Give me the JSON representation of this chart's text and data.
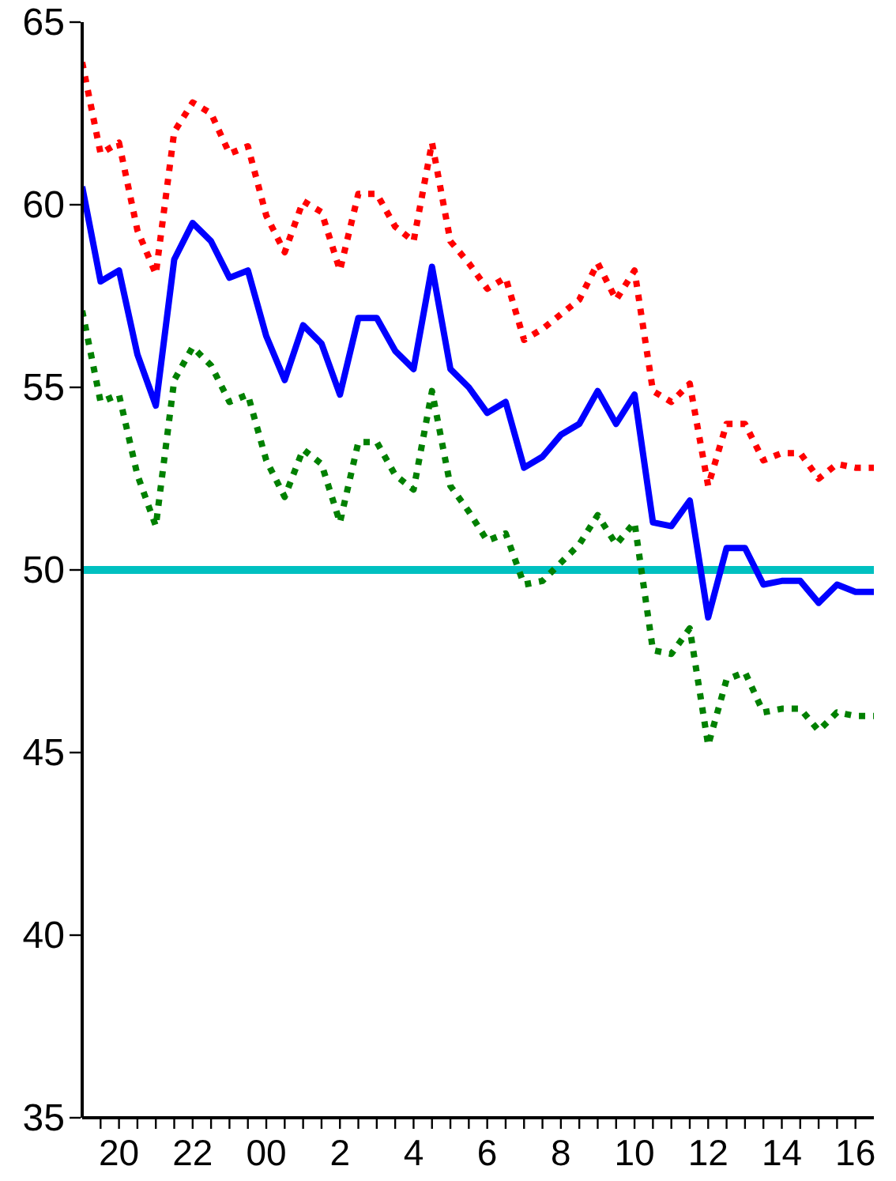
{
  "chart_data": {
    "type": "line",
    "x": [
      "2000-01-01T19:00",
      "2000-01-01T19:30",
      "2000-01-01T20:00",
      "2000-01-01T20:30",
      "2000-01-01T21:00",
      "2000-01-01T21:30",
      "2000-01-01T22:00",
      "2000-01-01T22:30",
      "2000-01-01T23:00",
      "2000-01-01T23:30",
      "2000-01-02T00:00",
      "2000-01-02T00:30",
      "2000-01-02T01:00",
      "2000-01-02T01:30",
      "2000-01-02T02:00",
      "2000-01-02T02:30",
      "2000-01-02T03:00",
      "2000-01-02T03:30",
      "2000-01-02T04:00",
      "2000-01-02T04:30",
      "2000-01-02T05:00",
      "2000-01-02T05:30",
      "2000-01-02T06:00",
      "2000-01-02T06:30",
      "2000-01-02T07:00",
      "2000-01-02T07:30",
      "2000-01-02T08:00",
      "2000-01-02T08:30",
      "2000-01-02T09:00",
      "2000-01-02T09:30",
      "2000-01-02T10:00",
      "2000-01-02T10:30",
      "2000-01-02T11:00",
      "2000-01-02T11:30",
      "2000-01-02T12:00",
      "2000-01-02T12:30",
      "2000-01-02T13:00",
      "2000-01-02T13:30",
      "2000-01-02T14:00",
      "2000-01-02T14:30",
      "2000-01-02T15:00",
      "2000-01-02T15:30",
      "2000-01-02T16:00",
      "2000-01-02T16:30"
    ],
    "series": [
      {
        "color": "#ff0000",
        "line_style": "dotted",
        "values": [
          63.9,
          61.4,
          61.7,
          59.3,
          58.1,
          62.0,
          62.8,
          62.5,
          61.4,
          61.6,
          59.7,
          58.7,
          60.1,
          59.8,
          58.2,
          60.3,
          60.3,
          59.4,
          59.0,
          61.7,
          59.0,
          58.4,
          57.7,
          58.0,
          56.3,
          56.6,
          57.0,
          57.4,
          58.4,
          57.4,
          58.2,
          54.9,
          54.6,
          55.1,
          52.3,
          54.0,
          54.0,
          53.0,
          53.2,
          53.2,
          52.5,
          52.9,
          52.8,
          52.8
        ]
      },
      {
        "color": "#0000ff",
        "line_style": "solid",
        "values": [
          60.5,
          57.9,
          58.2,
          55.9,
          54.5,
          58.5,
          59.5,
          59.0,
          58.0,
          58.2,
          56.4,
          55.2,
          56.7,
          56.2,
          54.8,
          56.9,
          56.9,
          56.0,
          55.5,
          58.3,
          55.5,
          55.0,
          54.3,
          54.6,
          52.8,
          53.1,
          53.7,
          54.0,
          54.9,
          54.0,
          54.8,
          51.3,
          51.2,
          51.9,
          48.7,
          50.6,
          50.6,
          49.6,
          49.7,
          49.7,
          49.1,
          49.6,
          49.4,
          49.4
        ]
      },
      {
        "color": "#008000",
        "line_style": "dotted",
        "values": [
          57.1,
          54.6,
          54.8,
          52.6,
          51.2,
          55.2,
          56.1,
          55.6,
          54.6,
          54.8,
          53.0,
          52.0,
          53.3,
          52.9,
          51.3,
          53.5,
          53.5,
          52.6,
          52.2,
          54.9,
          52.3,
          51.6,
          50.8,
          51.0,
          49.6,
          49.7,
          50.2,
          50.7,
          51.5,
          50.7,
          51.3,
          47.8,
          47.7,
          48.4,
          45.2,
          47.0,
          47.2,
          46.1,
          46.2,
          46.2,
          45.6,
          46.1,
          46.0,
          46.0
        ]
      }
    ],
    "xlim": [
      "2000-01-01T19:00",
      "2000-01-02T16:30"
    ],
    "xticks": [
      {
        "value": "2000-01-01T19:30",
        "label": null
      },
      {
        "value": "2000-01-01T20:00",
        "label": "20"
      },
      {
        "value": "2000-01-01T20:30",
        "label": null
      },
      {
        "value": "2000-01-01T21:00",
        "label": null
      },
      {
        "value": "2000-01-01T21:30",
        "label": null
      },
      {
        "value": "2000-01-01T22:00",
        "label": "22"
      },
      {
        "value": "2000-01-01T22:30",
        "label": null
      },
      {
        "value": "2000-01-01T23:00",
        "label": null
      },
      {
        "value": "2000-01-01T23:30",
        "label": null
      },
      {
        "value": "2000-01-02T00:00",
        "label": "00"
      },
      {
        "value": "2000-01-02T00:30",
        "label": null
      },
      {
        "value": "2000-01-02T01:00",
        "label": null
      },
      {
        "value": "2000-01-02T01:30",
        "label": null
      },
      {
        "value": "2000-01-02T02:00",
        "label": "2"
      },
      {
        "value": "2000-01-02T02:30",
        "label": null
      },
      {
        "value": "2000-01-02T03:00",
        "label": null
      },
      {
        "value": "2000-01-02T03:30",
        "label": null
      },
      {
        "value": "2000-01-02T04:00",
        "label": "4"
      },
      {
        "value": "2000-01-02T04:30",
        "label": null
      },
      {
        "value": "2000-01-02T05:00",
        "label": null
      },
      {
        "value": "2000-01-02T05:30",
        "label": null
      },
      {
        "value": "2000-01-02T06:00",
        "label": "6"
      },
      {
        "value": "2000-01-02T06:30",
        "label": null
      },
      {
        "value": "2000-01-02T07:00",
        "label": null
      },
      {
        "value": "2000-01-02T07:30",
        "label": null
      },
      {
        "value": "2000-01-02T08:00",
        "label": "8"
      },
      {
        "value": "2000-01-02T08:30",
        "label": null
      },
      {
        "value": "2000-01-02T09:00",
        "label": null
      },
      {
        "value": "2000-01-02T09:30",
        "label": null
      },
      {
        "value": "2000-01-02T10:00",
        "label": "10"
      },
      {
        "value": "2000-01-02T10:30",
        "label": null
      },
      {
        "value": "2000-01-02T11:00",
        "label": null
      },
      {
        "value": "2000-01-02T11:30",
        "label": null
      },
      {
        "value": "2000-01-02T12:00",
        "label": "12"
      },
      {
        "value": "2000-01-02T12:30",
        "label": null
      },
      {
        "value": "2000-01-02T13:00",
        "label": null
      },
      {
        "value": "2000-01-02T13:30",
        "label": null
      },
      {
        "value": "2000-01-02T14:00",
        "label": "14"
      },
      {
        "value": "2000-01-02T14:30",
        "label": null
      },
      {
        "value": "2000-01-02T15:00",
        "label": null
      },
      {
        "value": "2000-01-02T15:30",
        "label": null
      },
      {
        "value": "2000-01-02T16:00",
        "label": "16"
      }
    ],
    "ylim": [
      35,
      65
    ],
    "yticks": [
      35,
      40,
      45,
      50,
      55,
      60,
      65
    ],
    "ref_lines": [
      {
        "axis": "y",
        "value": 50,
        "label": null,
        "color": "#00c0c0"
      }
    ]
  }
}
